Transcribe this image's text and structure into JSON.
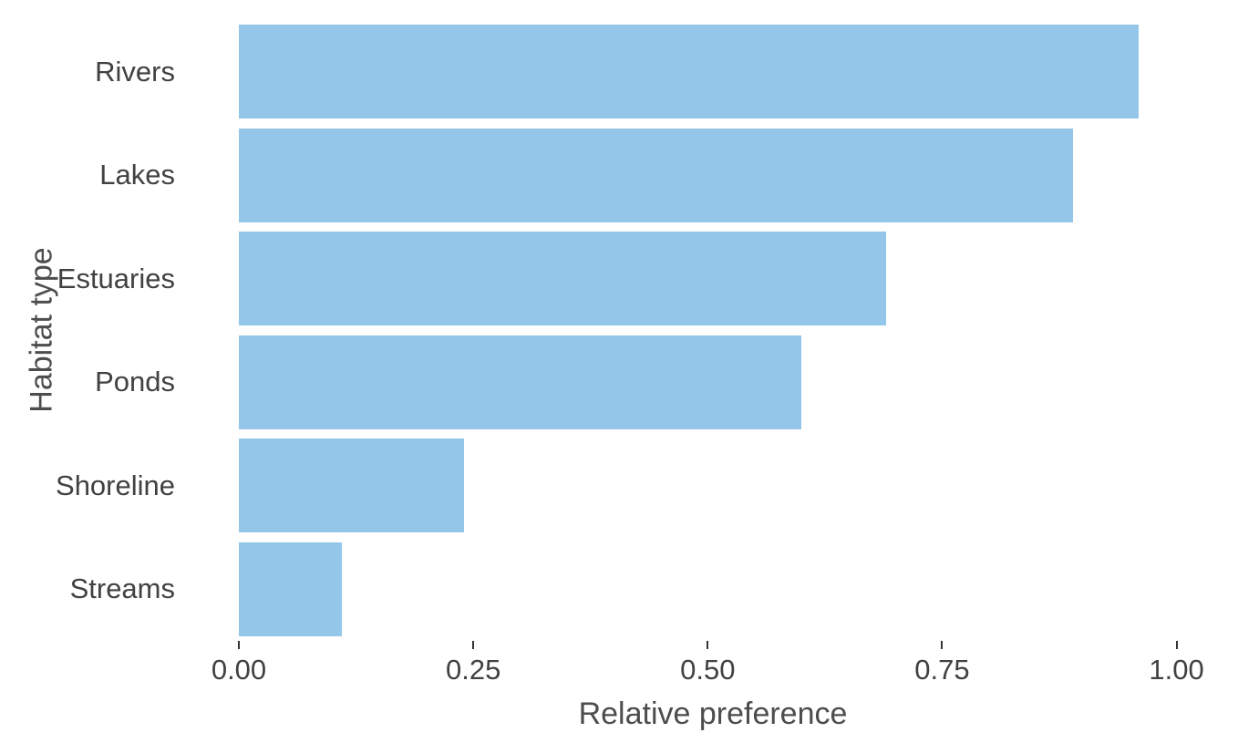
{
  "chart_data": {
    "type": "bar",
    "orientation": "horizontal",
    "title": "",
    "xlabel": "Relative preference",
    "ylabel": "Habitat type",
    "categories": [
      "Rivers",
      "Lakes",
      "Estuaries",
      "Ponds",
      "Shoreline",
      "Streams"
    ],
    "values": [
      0.96,
      0.89,
      0.69,
      0.6,
      0.24,
      0.11
    ],
    "x_tick_labels": [
      "0.00",
      "0.25",
      "0.50",
      "0.75",
      "1.00"
    ],
    "x_tick_values": [
      0,
      0.25,
      0.5,
      0.75,
      1.0
    ],
    "xlim": [
      0,
      1.01
    ],
    "grid": false,
    "legend": false,
    "bar_color": "#93c6e8",
    "axis_text_color": "#414141",
    "axis_title_color": "#4d4d4d",
    "tick_mark_color": "#333333",
    "background_color": "#ffffff"
  }
}
